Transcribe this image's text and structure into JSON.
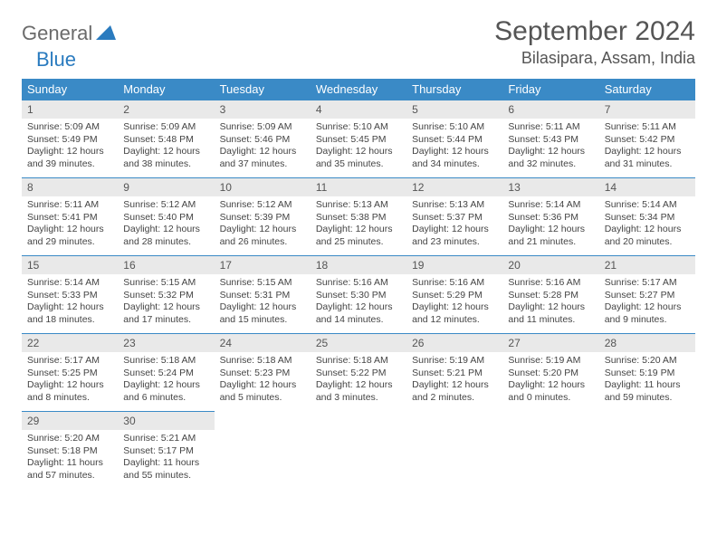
{
  "brand": {
    "part1": "General",
    "part2": "Blue"
  },
  "title": "September 2024",
  "location": "Bilasipara, Assam, India",
  "colors": {
    "header_bg": "#3a8ac6",
    "header_text": "#ffffff",
    "daynum_bg": "#e9e9e9",
    "body_text": "#444444",
    "brand_gray": "#6b6b6b",
    "brand_blue": "#2a7bbf",
    "page_bg": "#ffffff"
  },
  "weekdays": [
    "Sunday",
    "Monday",
    "Tuesday",
    "Wednesday",
    "Thursday",
    "Friday",
    "Saturday"
  ],
  "days": [
    {
      "n": 1,
      "sr": "5:09 AM",
      "ss": "5:49 PM",
      "dl": "12 hours and 39 minutes."
    },
    {
      "n": 2,
      "sr": "5:09 AM",
      "ss": "5:48 PM",
      "dl": "12 hours and 38 minutes."
    },
    {
      "n": 3,
      "sr": "5:09 AM",
      "ss": "5:46 PM",
      "dl": "12 hours and 37 minutes."
    },
    {
      "n": 4,
      "sr": "5:10 AM",
      "ss": "5:45 PM",
      "dl": "12 hours and 35 minutes."
    },
    {
      "n": 5,
      "sr": "5:10 AM",
      "ss": "5:44 PM",
      "dl": "12 hours and 34 minutes."
    },
    {
      "n": 6,
      "sr": "5:11 AM",
      "ss": "5:43 PM",
      "dl": "12 hours and 32 minutes."
    },
    {
      "n": 7,
      "sr": "5:11 AM",
      "ss": "5:42 PM",
      "dl": "12 hours and 31 minutes."
    },
    {
      "n": 8,
      "sr": "5:11 AM",
      "ss": "5:41 PM",
      "dl": "12 hours and 29 minutes."
    },
    {
      "n": 9,
      "sr": "5:12 AM",
      "ss": "5:40 PM",
      "dl": "12 hours and 28 minutes."
    },
    {
      "n": 10,
      "sr": "5:12 AM",
      "ss": "5:39 PM",
      "dl": "12 hours and 26 minutes."
    },
    {
      "n": 11,
      "sr": "5:13 AM",
      "ss": "5:38 PM",
      "dl": "12 hours and 25 minutes."
    },
    {
      "n": 12,
      "sr": "5:13 AM",
      "ss": "5:37 PM",
      "dl": "12 hours and 23 minutes."
    },
    {
      "n": 13,
      "sr": "5:14 AM",
      "ss": "5:36 PM",
      "dl": "12 hours and 21 minutes."
    },
    {
      "n": 14,
      "sr": "5:14 AM",
      "ss": "5:34 PM",
      "dl": "12 hours and 20 minutes."
    },
    {
      "n": 15,
      "sr": "5:14 AM",
      "ss": "5:33 PM",
      "dl": "12 hours and 18 minutes."
    },
    {
      "n": 16,
      "sr": "5:15 AM",
      "ss": "5:32 PM",
      "dl": "12 hours and 17 minutes."
    },
    {
      "n": 17,
      "sr": "5:15 AM",
      "ss": "5:31 PM",
      "dl": "12 hours and 15 minutes."
    },
    {
      "n": 18,
      "sr": "5:16 AM",
      "ss": "5:30 PM",
      "dl": "12 hours and 14 minutes."
    },
    {
      "n": 19,
      "sr": "5:16 AM",
      "ss": "5:29 PM",
      "dl": "12 hours and 12 minutes."
    },
    {
      "n": 20,
      "sr": "5:16 AM",
      "ss": "5:28 PM",
      "dl": "12 hours and 11 minutes."
    },
    {
      "n": 21,
      "sr": "5:17 AM",
      "ss": "5:27 PM",
      "dl": "12 hours and 9 minutes."
    },
    {
      "n": 22,
      "sr": "5:17 AM",
      "ss": "5:25 PM",
      "dl": "12 hours and 8 minutes."
    },
    {
      "n": 23,
      "sr": "5:18 AM",
      "ss": "5:24 PM",
      "dl": "12 hours and 6 minutes."
    },
    {
      "n": 24,
      "sr": "5:18 AM",
      "ss": "5:23 PM",
      "dl": "12 hours and 5 minutes."
    },
    {
      "n": 25,
      "sr": "5:18 AM",
      "ss": "5:22 PM",
      "dl": "12 hours and 3 minutes."
    },
    {
      "n": 26,
      "sr": "5:19 AM",
      "ss": "5:21 PM",
      "dl": "12 hours and 2 minutes."
    },
    {
      "n": 27,
      "sr": "5:19 AM",
      "ss": "5:20 PM",
      "dl": "12 hours and 0 minutes."
    },
    {
      "n": 28,
      "sr": "5:20 AM",
      "ss": "5:19 PM",
      "dl": "11 hours and 59 minutes."
    },
    {
      "n": 29,
      "sr": "5:20 AM",
      "ss": "5:18 PM",
      "dl": "11 hours and 57 minutes."
    },
    {
      "n": 30,
      "sr": "5:21 AM",
      "ss": "5:17 PM",
      "dl": "11 hours and 55 minutes."
    }
  ],
  "labels": {
    "sunrise": "Sunrise:",
    "sunset": "Sunset:",
    "daylight": "Daylight:"
  },
  "layout": {
    "start_weekday": 0,
    "total_cells": 35
  }
}
